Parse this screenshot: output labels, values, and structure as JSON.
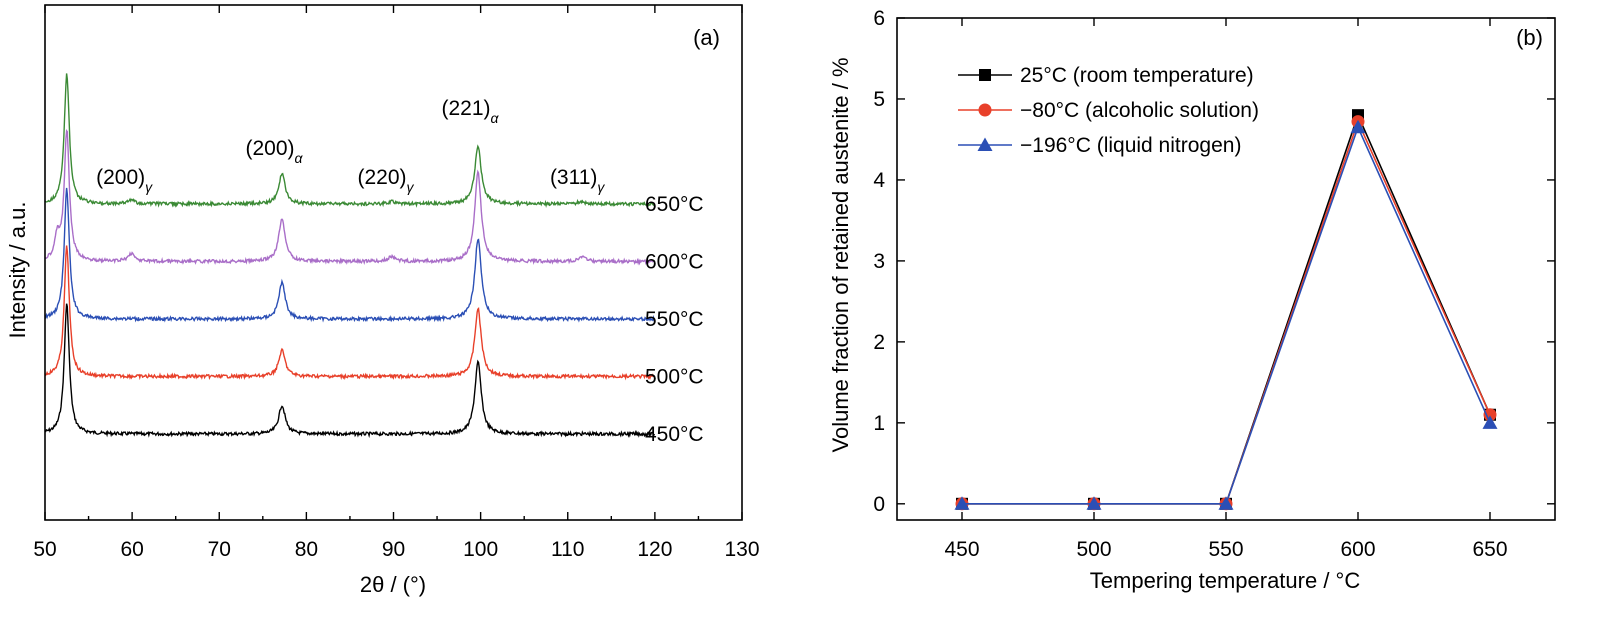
{
  "chart_data": [
    {
      "type": "line",
      "panel_label": "(a)",
      "xlabel": "2θ / (°)",
      "ylabel": "Intensity / a.u.",
      "xlim": [
        50,
        130
      ],
      "xticks": [
        50,
        60,
        70,
        80,
        90,
        100,
        110,
        120,
        130
      ],
      "y_tick_labels": false,
      "peak_labels": [
        {
          "text": "(200)",
          "sub": "γ",
          "x": 60
        },
        {
          "text": "(200)",
          "sub": "α",
          "x": 77.2
        },
        {
          "text": "(220)",
          "sub": "γ",
          "x": 90
        },
        {
          "text": "(221)",
          "sub": "α",
          "x": 99.7
        },
        {
          "text": "(311)",
          "sub": "γ",
          "x": 112
        }
      ],
      "series": [
        {
          "name": "450°C",
          "color": "#000000",
          "offset": 0,
          "peaks": [
            [
              52.5,
              1.0
            ],
            [
              77.2,
              0.22
            ],
            [
              99.7,
              0.55
            ]
          ]
        },
        {
          "name": "500°C",
          "color": "#e8402a",
          "offset": 1,
          "peaks": [
            [
              52.5,
              1.0
            ],
            [
              77.2,
              0.2
            ],
            [
              99.7,
              0.52
            ]
          ]
        },
        {
          "name": "550°C",
          "color": "#2b4fb5",
          "offset": 2,
          "peaks": [
            [
              52.5,
              1.0
            ],
            [
              77.2,
              0.28
            ],
            [
              99.7,
              0.62
            ]
          ]
        },
        {
          "name": "600°C",
          "color": "#a96ec8",
          "offset": 3,
          "peaks": [
            [
              51.4,
              0.18
            ],
            [
              52.5,
              1.0
            ],
            [
              59.9,
              0.06
            ],
            [
              77.2,
              0.33
            ],
            [
              89.8,
              0.04
            ],
            [
              99.7,
              0.68
            ],
            [
              111.6,
              0.04
            ]
          ]
        },
        {
          "name": "650°C",
          "color": "#3b8a35",
          "offset": 4,
          "peaks": [
            [
              52.5,
              1.0
            ],
            [
              59.9,
              0.03
            ],
            [
              77.2,
              0.23
            ],
            [
              89.8,
              0.02
            ],
            [
              99.7,
              0.44
            ],
            [
              111.6,
              0.02
            ]
          ]
        }
      ]
    },
    {
      "type": "line",
      "panel_label": "(b)",
      "xlabel": "Tempering temperature / °C",
      "ylabel": "Volume fraction of retained austenite / %",
      "categories": [
        450,
        500,
        550,
        600,
        650
      ],
      "ylim": [
        -0.2,
        6
      ],
      "yticks": [
        0,
        1,
        2,
        3,
        4,
        5,
        6
      ],
      "legend_position": "top-left",
      "series": [
        {
          "name": "25°C (room temperature)",
          "color": "#000000",
          "marker": "square",
          "values": [
            0,
            0,
            0,
            4.8,
            1.1
          ]
        },
        {
          "name": "−80°C (alcoholic solution)",
          "color": "#e8402a",
          "marker": "circle",
          "values": [
            0,
            0,
            0,
            4.72,
            1.1
          ]
        },
        {
          "name": "−196°C (liquid nitrogen)",
          "color": "#2b4fb5",
          "marker": "triangle",
          "values": [
            0,
            0,
            0,
            4.65,
            1.0
          ]
        }
      ]
    }
  ]
}
